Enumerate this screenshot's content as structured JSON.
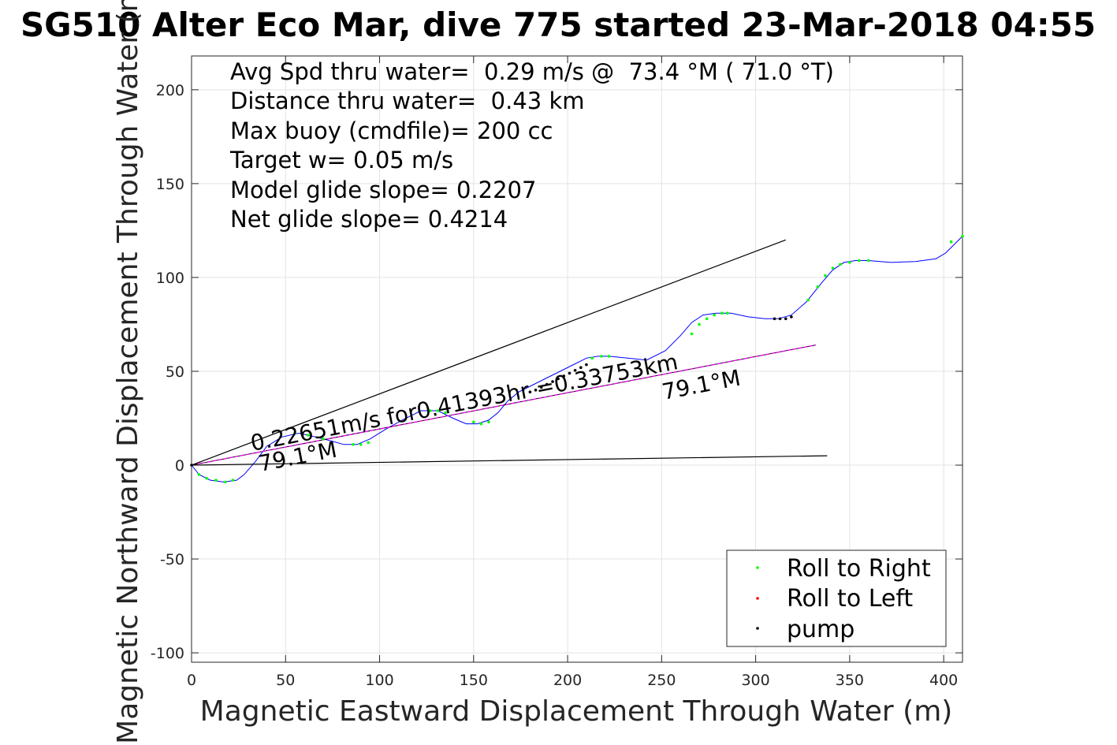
{
  "colors": {
    "roll_right": "#00ff00",
    "roll_left": "#ff0000",
    "pump": "#000000",
    "track": "#0000ff",
    "fit": "#ff00ff",
    "grid": "#e3e3e3",
    "axes": "#262626"
  },
  "chart_data": {
    "type": "line",
    "title": "SG510 Alter Eco Mar, dive 775 started 23-Mar-2018 04:55",
    "xlabel": "Magnetic Eastward Displacement Through Water (m)",
    "ylabel": "Magnetic Northward Displacement Through Water (m)",
    "xlim": [
      0,
      410
    ],
    "ylim": [
      -105,
      218
    ],
    "xticks": [
      "0",
      "50",
      "100",
      "150",
      "200",
      "250",
      "300",
      "350",
      "400"
    ],
    "yticks": [
      "-100",
      "-50",
      "0",
      "50",
      "100",
      "150",
      "200"
    ],
    "grid": true,
    "legend_position": "bottom-right",
    "stats": [
      "Avg Spd thru water=  0.29 m/s @  73.4 °M ( 71.0 °T)",
      "Distance thru water=  0.43 km",
      "Max buoy (cmdfile)= 200 cc",
      "Target w= 0.05 m/s",
      "Model glide slope= 0.2207",
      "Net glide slope= 0.4214"
    ],
    "annotations": {
      "speed": "0.22651m/s for0.41393hr =0.33753km",
      "heading_near": "79.1°M",
      "heading_far": "79.1°M"
    },
    "series": [
      {
        "name": "track",
        "style": "line",
        "x": [
          0,
          4,
          10,
          17,
          24,
          28,
          34,
          40,
          48,
          57,
          66,
          74,
          81,
          88,
          95,
          103,
          112,
          122,
          131,
          139,
          146,
          152,
          158,
          163,
          168,
          174,
          180,
          188,
          196,
          204,
          210,
          216,
          222,
          232,
          242,
          252,
          260,
          266,
          272,
          279,
          287,
          296,
          305,
          312,
          319,
          327,
          335,
          341,
          347,
          353,
          360,
          372,
          385,
          396,
          401,
          405,
          410
        ],
        "y": [
          0,
          -5,
          -8,
          -9,
          -8,
          -5,
          2,
          10,
          15,
          17,
          15,
          13,
          11,
          11,
          14,
          19,
          24,
          29,
          29,
          25,
          22,
          22,
          24,
          28,
          34,
          39,
          42,
          46,
          50,
          54,
          57,
          58,
          58,
          57,
          56,
          61,
          69,
          76,
          80,
          81,
          81,
          79,
          78,
          78,
          80,
          87,
          97,
          104,
          108,
          109,
          109,
          108,
          108.5,
          110,
          113,
          117,
          122
        ]
      },
      {
        "name": "Roll to Right",
        "style": "points",
        "x": [
          4,
          8,
          13,
          18,
          22,
          55,
          62,
          70,
          86,
          90,
          94,
          127,
          131,
          135,
          150,
          154,
          158,
          213,
          218,
          222,
          266,
          270,
          274,
          278,
          282,
          285,
          328,
          333,
          337,
          341,
          345,
          350,
          355,
          360,
          404,
          410
        ],
        "y": [
          -5,
          -7,
          -8,
          -9,
          -8,
          17,
          16,
          14,
          11,
          11,
          12,
          29,
          29,
          28,
          23,
          22,
          23,
          57,
          58,
          58,
          70,
          75,
          78,
          80,
          81,
          81,
          88,
          95,
          101,
          105,
          107,
          108,
          109,
          109,
          119,
          122
        ]
      },
      {
        "name": "Roll to Left",
        "style": "points",
        "x": [],
        "y": []
      },
      {
        "name": "pump",
        "style": "points",
        "x": [
          0,
          180,
          183,
          186,
          189,
          192,
          195,
          198,
          201,
          204,
          207,
          210,
          310,
          313,
          316,
          319
        ],
        "y": [
          0,
          39,
          40,
          41.5,
          43,
          44.5,
          46,
          47.5,
          49,
          50.5,
          52,
          53.5,
          78,
          78,
          78,
          79
        ]
      },
      {
        "name": "net glide line",
        "style": "line",
        "x": [
          0,
          332
        ],
        "y": [
          0,
          64
        ]
      },
      {
        "name": "upper bound",
        "style": "line",
        "x": [
          0,
          316
        ],
        "y": [
          0,
          120
        ]
      },
      {
        "name": "lower bound",
        "style": "line",
        "x": [
          0,
          338
        ],
        "y": [
          0,
          5
        ]
      }
    ]
  }
}
